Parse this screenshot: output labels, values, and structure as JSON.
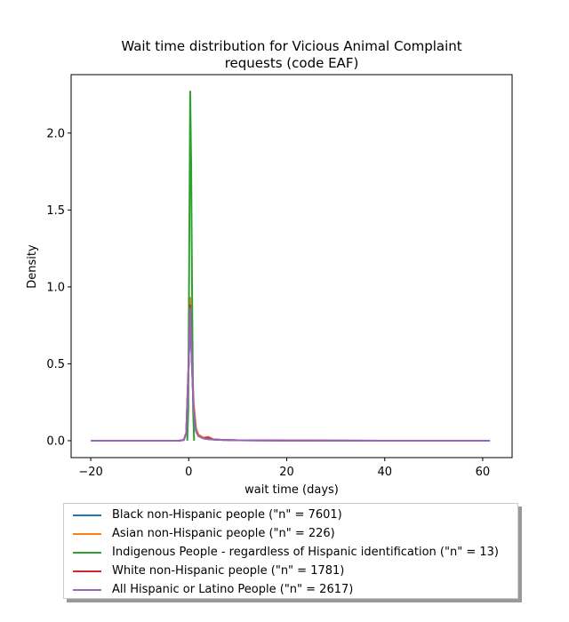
{
  "chart_data": {
    "type": "line",
    "title_lines": [
      "Wait time distribution  for Vicious Animal Complaint",
      "requests (code EAF)"
    ],
    "xlabel": "wait time (days)",
    "ylabel": "Density",
    "xlim": [
      -24,
      66
    ],
    "ylim": [
      -0.11,
      2.38
    ],
    "xticks": [
      -20,
      0,
      20,
      40,
      60
    ],
    "xtick_labels": [
      "−20",
      "0",
      "20",
      "40",
      "60"
    ],
    "yticks": [
      0.0,
      0.5,
      1.0,
      1.5,
      2.0
    ],
    "ytick_labels": [
      "0.0",
      "0.5",
      "1.0",
      "1.5",
      "2.0"
    ],
    "grid": false,
    "legend_position": "below",
    "series": [
      {
        "name": "Black non-Hispanic people (\"n\" = 7601)",
        "color": "#1f77b4",
        "x": [
          -13,
          -5,
          -2,
          -1,
          -0.5,
          0,
          0.3,
          0.6,
          1,
          1.5,
          2,
          3,
          4,
          5,
          7,
          10,
          20,
          30,
          39
        ],
        "y": [
          0,
          0,
          0,
          0.005,
          0.05,
          0.5,
          0.88,
          0.55,
          0.2,
          0.06,
          0.03,
          0.015,
          0.01,
          0.008,
          0.005,
          0.003,
          0.001,
          0.0005,
          0
        ]
      },
      {
        "name": "Asian non-Hispanic people (\"n\" = 226)",
        "color": "#ff7f0e",
        "x": [
          -20,
          -5,
          -2,
          -1,
          -0.5,
          0,
          0.3,
          0.6,
          1,
          1.5,
          2,
          3,
          4,
          5,
          7,
          10,
          20,
          40,
          60
        ],
        "y": [
          0,
          0,
          0,
          0.005,
          0.05,
          0.55,
          0.93,
          0.6,
          0.25,
          0.08,
          0.04,
          0.02,
          0.025,
          0.01,
          0.005,
          0.003,
          0.001,
          0,
          0
        ]
      },
      {
        "name": "Indigenous People - regardless of Hispanic identification (\"n\" = 13)",
        "color": "#2ca02c",
        "x": [
          -0.3,
          -0.1,
          0.1,
          0.3,
          0.5,
          0.7,
          0.9,
          1.1
        ],
        "y": [
          0,
          0.2,
          1.2,
          2.27,
          1.8,
          0.9,
          0.2,
          0
        ]
      },
      {
        "name": "White non-Hispanic people (\"n\" = 1781)",
        "color": "#d62728",
        "x": [
          -12,
          -5,
          -2,
          -1,
          -0.5,
          0,
          0.3,
          0.6,
          1,
          1.5,
          2,
          3,
          4,
          5,
          7,
          10,
          20,
          30,
          40
        ],
        "y": [
          0,
          0,
          0,
          0.005,
          0.05,
          0.5,
          0.88,
          0.55,
          0.2,
          0.06,
          0.03,
          0.015,
          0.02,
          0.008,
          0.005,
          0.003,
          0.001,
          0.0005,
          0
        ]
      },
      {
        "name": "All Hispanic or Latino People (\"n\" = 2617)",
        "color": "#9467bd",
        "x": [
          -20,
          -5,
          -2,
          -1,
          -0.5,
          0,
          0.3,
          0.6,
          1,
          1.5,
          2,
          3,
          4,
          5,
          7,
          10,
          20,
          40,
          61.5
        ],
        "y": [
          0,
          0,
          0,
          0.005,
          0.05,
          0.5,
          0.86,
          0.55,
          0.2,
          0.06,
          0.03,
          0.015,
          0.01,
          0.008,
          0.005,
          0.003,
          0.001,
          0,
          0
        ]
      }
    ]
  }
}
